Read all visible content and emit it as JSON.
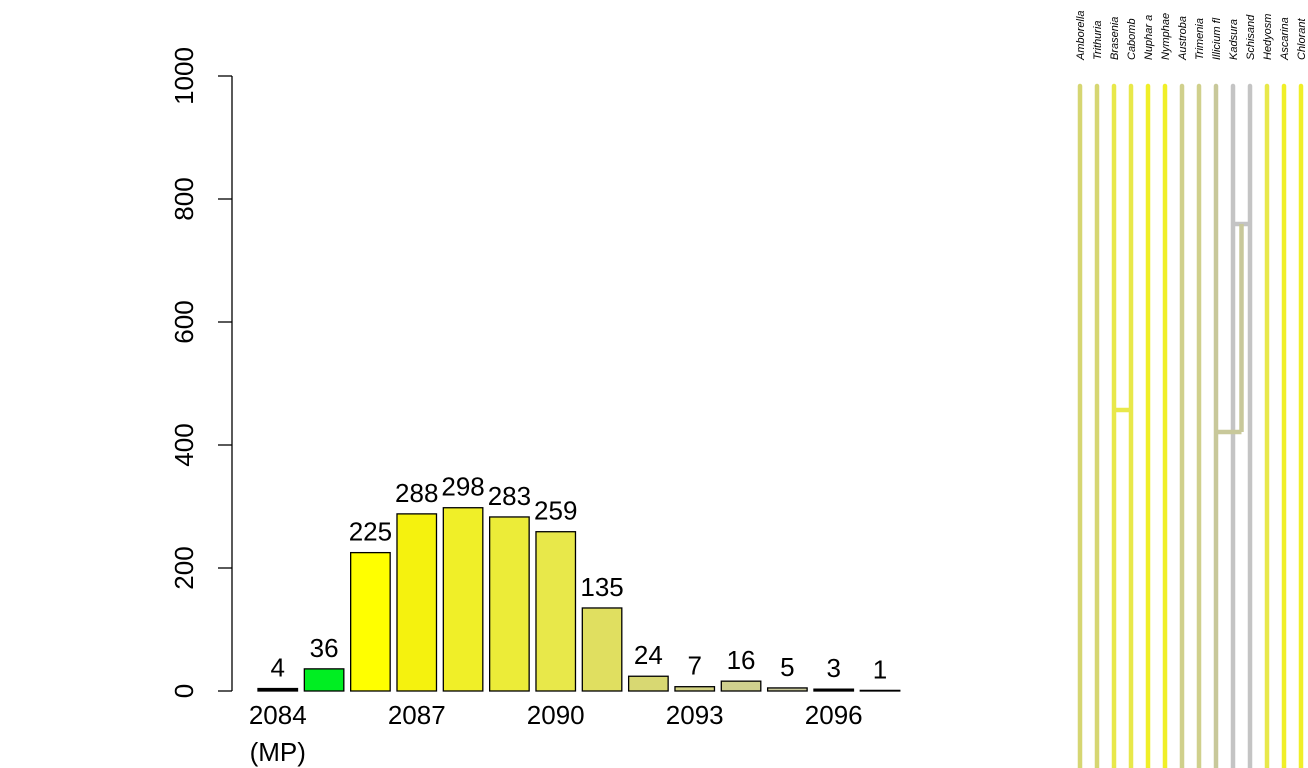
{
  "chart_data": {
    "type": "bar",
    "categories": [
      "2084",
      "2085",
      "2086",
      "2087",
      "2088",
      "2089",
      "2090",
      "2091",
      "2092",
      "2093",
      "2094",
      "2095",
      "2096",
      "2097"
    ],
    "values": [
      4,
      36,
      225,
      288,
      298,
      283,
      259,
      135,
      24,
      7,
      16,
      5,
      3,
      1
    ],
    "bar_colors": [
      "#000000",
      "#00ee22",
      "#ffff00",
      "#f5f20e",
      "#f0ef28",
      "#ecec38",
      "#e8e84a",
      "#e0df60",
      "#d8d872",
      "#d2d282",
      "#cfd08e",
      "#c8c89a",
      "#000000",
      "#000000"
    ],
    "xtick_labels": [
      {
        "category": "2084",
        "text": "2084",
        "sub": "(MP)"
      },
      {
        "category": "2087",
        "text": "2087"
      },
      {
        "category": "2090",
        "text": "2090"
      },
      {
        "category": "2093",
        "text": "2093"
      },
      {
        "category": "2096",
        "text": "2096"
      }
    ],
    "yticks": [
      0,
      200,
      400,
      600,
      800,
      1000
    ],
    "ylim": [
      0,
      1000
    ],
    "title": "",
    "xlabel": "",
    "ylabel": "",
    "grid": false
  },
  "tree": {
    "taxa": [
      {
        "label": "Amborella",
        "color": "#d6d672"
      },
      {
        "label": "Trithuria",
        "color": "#d6d672"
      },
      {
        "label": "Brasenia",
        "color": "#e8e84a"
      },
      {
        "label": "Cabomb",
        "color": "#e8e84a"
      },
      {
        "label": "Nuphar a",
        "color": "#f0ef28"
      },
      {
        "label": "Nymphae",
        "color": "#f0ef28"
      },
      {
        "label": "Austroba",
        "color": "#d0d08c"
      },
      {
        "label": "Trimenia",
        "color": "#d0d08c"
      },
      {
        "label": "Illicium fl",
        "color": "#c8c89a"
      },
      {
        "label": "Kadsura",
        "color": "#c4c4c4"
      },
      {
        "label": "Schisand",
        "color": "#c4c4c4"
      },
      {
        "label": "Hedyosm",
        "color": "#e8e84a"
      },
      {
        "label": "Ascarina",
        "color": "#f0ef28"
      },
      {
        "label": "Chlorant",
        "color": "#f0ef28"
      }
    ],
    "branch_colors": {
      "cabomba_clade": "#e8e84a",
      "illicium_clade": "#c8c89a",
      "kadsura_clade": "#c4c4c4"
    }
  }
}
